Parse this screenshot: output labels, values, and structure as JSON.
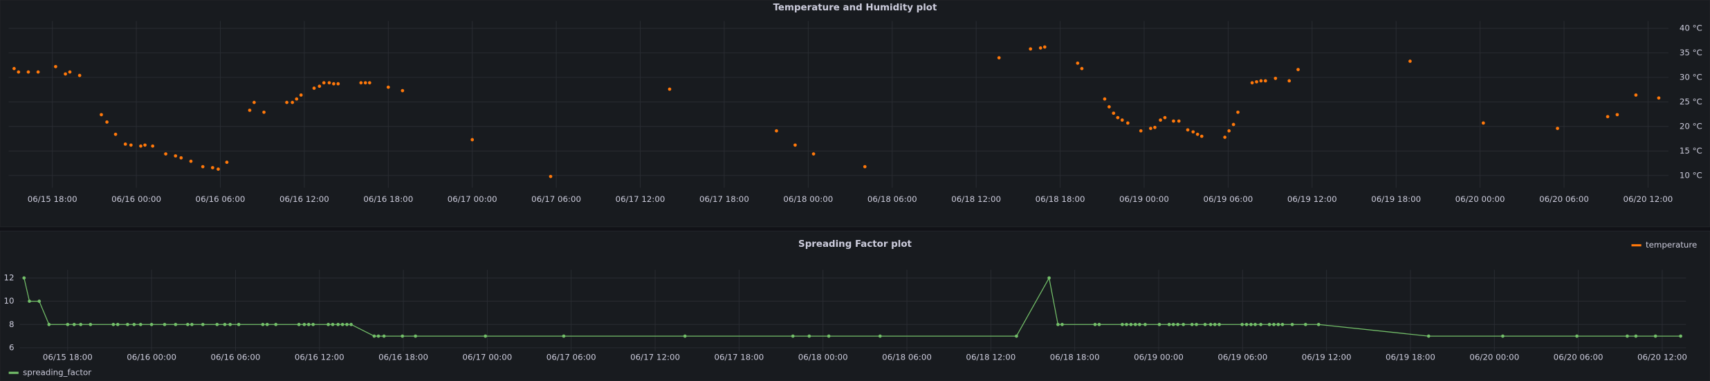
{
  "chart_data": [
    {
      "type": "scatter",
      "title": "Temperature and Humidity plot",
      "x": [
        "06/15 15:16",
        "06/15 15:35",
        "06/15 16:17",
        "06/15 16:59",
        "06/15 18:14",
        "06/15 18:56",
        "06/15 19:15",
        "06/15 19:57",
        "06/15 21:30",
        "06/15 21:54",
        "06/15 22:31",
        "06/15 23:13",
        "06/15 23:37",
        "06/16 00:19",
        "06/16 00:37",
        "06/16 01:10",
        "06/16 02:06",
        "06/16 02:48",
        "06/16 03:12",
        "06/16 03:54",
        "06/16 04:45",
        "06/16 05:27",
        "06/16 05:51",
        "06/16 06:28",
        "06/16 08:06",
        "06/16 08:25",
        "06/16 09:07",
        "06/16 10:45",
        "06/16 11:09",
        "06/16 11:27",
        "06/16 11:46",
        "06/16 12:42",
        "06/16 13:05",
        "06/16 13:24",
        "06/16 13:47",
        "06/16 14:06",
        "06/16 14:25",
        "06/16 16:03",
        "06/16 16:22",
        "06/16 16:40",
        "06/16 18:00",
        "06/16 19:01",
        "06/17 00:00",
        "06/17 05:36",
        "06/17 14:06",
        "06/17 21:44",
        "06/17 23:04",
        "06/18 00:23",
        "06/18 04:03",
        "06/18 13:38",
        "06/18 15:53",
        "06/18 16:36",
        "06/18 16:54",
        "06/18 19:15",
        "06/18 19:33",
        "06/18 21:11",
        "06/18 21:30",
        "06/18 21:49",
        "06/18 22:07",
        "06/18 22:26",
        "06/18 22:50",
        "06/18 23:46",
        "06/19 00:28",
        "06/19 00:46",
        "06/19 01:10",
        "06/19 01:29",
        "06/19 02:06",
        "06/19 02:29",
        "06/19 03:07",
        "06/19 03:30",
        "06/19 03:49",
        "06/19 04:07",
        "06/19 05:46",
        "06/19 06:04",
        "06/19 06:23",
        "06/19 06:42",
        "06/19 07:43",
        "06/19 08:02",
        "06/19 08:21",
        "06/19 08:40",
        "06/19 09:23",
        "06/19 10:22",
        "06/19 11:00",
        "06/19 19:00",
        "06/20 00:14",
        "06/20 05:32",
        "06/20 09:07",
        "06/20 09:48",
        "06/20 11:08",
        "06/20 12:46"
      ],
      "series": [
        {
          "name": "temperature",
          "color": "#ff780a",
          "values": [
            31.8,
            31.1,
            31.1,
            31.1,
            32.2,
            30.7,
            31.1,
            30.4,
            22.4,
            20.9,
            18.4,
            16.4,
            16.2,
            16.0,
            16.2,
            16.0,
            14.4,
            14.0,
            13.6,
            12.9,
            11.8,
            11.6,
            11.3,
            12.7,
            23.3,
            24.9,
            22.9,
            24.9,
            24.9,
            25.6,
            26.4,
            27.8,
            28.2,
            28.9,
            28.9,
            28.7,
            28.7,
            28.9,
            28.9,
            28.9,
            28.0,
            27.3,
            17.3,
            9.8,
            27.6,
            19.1,
            16.2,
            14.4,
            11.8,
            34.0,
            35.8,
            36.0,
            36.2,
            32.9,
            31.8,
            25.6,
            24.0,
            22.7,
            21.8,
            21.3,
            20.7,
            19.1,
            19.6,
            19.8,
            21.3,
            21.8,
            21.1,
            21.1,
            19.3,
            18.9,
            18.4,
            18.0,
            17.8,
            19.1,
            20.4,
            22.9,
            28.9,
            29.1,
            29.3,
            29.3,
            29.8,
            29.3,
            31.6,
            33.3,
            20.7,
            19.6,
            22.0,
            22.4,
            26.4,
            25.8
          ]
        }
      ],
      "xlim": [
        "06/15 14:53",
        "06/20 13:28"
      ],
      "xticks": [
        "06/15 18:00",
        "06/16 00:00",
        "06/16 06:00",
        "06/16 12:00",
        "06/16 18:00",
        "06/17 00:00",
        "06/17 06:00",
        "06/17 12:00",
        "06/17 18:00",
        "06/18 00:00",
        "06/18 06:00",
        "06/18 12:00",
        "06/18 18:00",
        "06/19 00:00",
        "06/19 06:00",
        "06/19 12:00",
        "06/19 18:00",
        "06/20 00:00",
        "06/20 06:00",
        "06/20 12:00"
      ],
      "ylim": [
        7.5,
        41.5
      ],
      "yticks": [
        {
          "value": 10,
          "label": "10 °C"
        },
        {
          "value": 15,
          "label": "15 °C"
        },
        {
          "value": 20,
          "label": "20 °C"
        },
        {
          "value": 25,
          "label": "25 °C"
        },
        {
          "value": 30,
          "label": "30 °C"
        },
        {
          "value": 35,
          "label": "35 °C"
        },
        {
          "value": 40,
          "label": "40 °C"
        }
      ],
      "y_axis_side": "right",
      "grid": true,
      "legend": "bottom-right"
    },
    {
      "type": "line",
      "title": "Spreading Factor plot",
      "x": [
        "06/15 14:53",
        "06/15 15:16",
        "06/15 15:58",
        "06/15 16:40",
        "06/15 18:00",
        "06/15 18:28",
        "06/15 18:56",
        "06/15 19:38",
        "06/15 21:16",
        "06/15 21:35",
        "06/15 22:17",
        "06/15 22:45",
        "06/15 23:13",
        "06/16 00:00",
        "06/16 00:56",
        "06/16 01:43",
        "06/16 02:35",
        "06/16 02:53",
        "06/16 03:40",
        "06/16 04:41",
        "06/16 05:14",
        "06/16 05:37",
        "06/16 06:14",
        "06/16 07:57",
        "06/16 08:16",
        "06/16 08:53",
        "06/16 10:32",
        "06/16 10:55",
        "06/16 11:14",
        "06/16 11:33",
        "06/16 12:38",
        "06/16 12:57",
        "06/16 13:20",
        "06/16 13:39",
        "06/16 13:58",
        "06/16 14:16",
        "06/16 15:55",
        "06/16 16:13",
        "06/16 16:37",
        "06/16 17:56",
        "06/16 18:52",
        "06/16 23:52",
        "06/17 05:28",
        "06/17 14:08",
        "06/17 21:51",
        "06/17 23:01",
        "06/18 00:25",
        "06/18 04:05",
        "06/18 13:50",
        "06/18 16:10",
        "06/18 16:48",
        "06/18 17:06",
        "06/18 19:27",
        "06/18 19:45",
        "06/18 21:24",
        "06/18 21:42",
        "06/18 22:01",
        "06/18 22:20",
        "06/18 22:38",
        "06/18 23:02",
        "06/19 00:03",
        "06/19 00:45",
        "06/19 01:03",
        "06/19 01:22",
        "06/19 01:46",
        "06/19 02:23",
        "06/19 02:42",
        "06/19 03:19",
        "06/19 03:43",
        "06/19 04:01",
        "06/19 04:20",
        "06/19 05:58",
        "06/19 06:17",
        "06/19 06:36",
        "06/19 06:54",
        "06/19 07:18",
        "06/19 07:55",
        "06/19 08:14",
        "06/19 08:33",
        "06/19 08:51",
        "06/19 09:33",
        "06/19 10:30",
        "06/19 11:26",
        "06/19 19:18",
        "06/20 00:36",
        "06/20 05:54",
        "06/20 09:30",
        "06/20 10:07",
        "06/20 11:31",
        "06/20 13:19"
      ],
      "series": [
        {
          "name": "spreading_factor",
          "color": "#73bf69",
          "values": [
            12,
            10,
            10,
            8,
            8,
            8,
            8,
            8,
            8,
            8,
            8,
            8,
            8,
            8,
            8,
            8,
            8,
            8,
            8,
            8,
            8,
            8,
            8,
            8,
            8,
            8,
            8,
            8,
            8,
            8,
            8,
            8,
            8,
            8,
            8,
            8,
            7,
            7,
            7,
            7,
            7,
            7,
            7,
            7,
            7,
            7,
            7,
            7,
            7,
            12,
            8,
            8,
            8,
            8,
            8,
            8,
            8,
            8,
            8,
            8,
            8,
            8,
            8,
            8,
            8,
            8,
            8,
            8,
            8,
            8,
            8,
            8,
            8,
            8,
            8,
            8,
            8,
            8,
            8,
            8,
            8,
            8,
            8,
            7,
            7,
            7,
            7,
            7,
            7,
            7
          ]
        }
      ],
      "xlim": [
        "06/15 14:34",
        "06/20 13:42"
      ],
      "xticks": [
        "06/15 18:00",
        "06/16 00:00",
        "06/16 06:00",
        "06/16 12:00",
        "06/16 18:00",
        "06/17 00:00",
        "06/17 06:00",
        "06/17 12:00",
        "06/17 18:00",
        "06/18 00:00",
        "06/18 06:00",
        "06/18 12:00",
        "06/18 18:00",
        "06/19 00:00",
        "06/19 06:00",
        "06/19 12:00",
        "06/19 18:00",
        "06/20 00:00",
        "06/20 06:00",
        "06/20 12:00"
      ],
      "ylim": [
        5.7,
        12.7
      ],
      "yticks": [
        6,
        8,
        10,
        12
      ],
      "y_axis_side": "left",
      "grid": true,
      "legend": "bottom-left"
    }
  ]
}
